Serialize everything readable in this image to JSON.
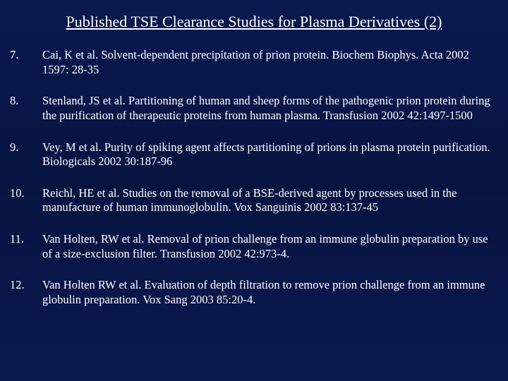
{
  "title": "Published TSE Clearance Studies for Plasma Derivatives (2)",
  "title_color": "#ffffff",
  "title_fontsize": 22,
  "background_gradient": [
    "#0a1850",
    "#081440",
    "#0a1850"
  ],
  "text_color": "#ffffff",
  "body_fontsize": 16.5,
  "font_family": "Times New Roman",
  "references": [
    {
      "num": "7.",
      "text": "Cai, K et al.  Solvent-dependent precipitation of prion protein.  Biochem Biophys. Acta 2002  1597: 28-35"
    },
    {
      "num": "8.",
      "text": "Stenland, JS et al.  Partitioning of human and sheep forms of the pathogenic prion protein during the purification of therapeutic proteins from human plasma.  Transfusion 2002 42:1497-1500"
    },
    {
      "num": "9.",
      "text": "Vey, M et al. Purity of spiking agent affects partitioning of prions in plasma protein purification.  Biologicals 2002  30:187-96"
    },
    {
      "num": "10.",
      "text": "Reichl, HE et al. Studies on the removal of a BSE-derived agent by processes used in the manufacture of human immunoglobulin.  Vox Sanguinis  2002 83:137-45"
    },
    {
      "num": "11.",
      "text": "Van Holten, RW et al.  Removal of prion challenge from an immune globulin preparation by use of a size-exclusion filter.  Transfusion 2002  42:973-4."
    },
    {
      "num": "12.",
      "text": "Van Holten RW et al. Evaluation of depth filtration to remove prion challenge from an immune globulin preparation.  Vox Sang 2003  85:20-4."
    }
  ]
}
